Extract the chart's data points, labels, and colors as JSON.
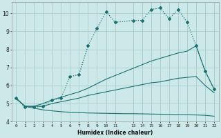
{
  "xlabel": "Humidex (Indice chaleur)",
  "bg_color": "#cce8e8",
  "grid_color": "#aacccc",
  "line_color": "#1a7070",
  "xlim": [
    -0.5,
    22.5
  ],
  "ylim": [
    4.0,
    10.6
  ],
  "yticks": [
    4,
    5,
    6,
    7,
    8,
    9,
    10
  ],
  "xticks": [
    0,
    1,
    2,
    3,
    4,
    5,
    6,
    7,
    8,
    9,
    10,
    11,
    13,
    14,
    15,
    16,
    17,
    18,
    19,
    20,
    21,
    22
  ],
  "s1_x": [
    0,
    1,
    2,
    3,
    4,
    5,
    6,
    7,
    8,
    9,
    10,
    11,
    13,
    14,
    15,
    16,
    17,
    18,
    19,
    20,
    21,
    22
  ],
  "s1_y": [
    5.3,
    4.8,
    4.8,
    4.85,
    5.2,
    5.3,
    6.5,
    6.6,
    8.2,
    9.15,
    10.1,
    9.5,
    9.6,
    9.6,
    10.2,
    10.3,
    9.7,
    10.2,
    9.5,
    8.2,
    6.8,
    5.8
  ],
  "s2_x": [
    0,
    1,
    2,
    3,
    4,
    5,
    6,
    7,
    8,
    9,
    10,
    11,
    13,
    14,
    15,
    16,
    17,
    18,
    19,
    20,
    21,
    22
  ],
  "s2_y": [
    5.3,
    4.85,
    4.85,
    5.0,
    5.2,
    5.35,
    5.5,
    5.65,
    5.85,
    6.1,
    6.35,
    6.55,
    6.95,
    7.15,
    7.35,
    7.5,
    7.65,
    7.8,
    7.9,
    8.2,
    6.8,
    5.8
  ],
  "s3_x": [
    0,
    1,
    2,
    3,
    4,
    5,
    6,
    7,
    8,
    9,
    10,
    11,
    13,
    14,
    15,
    16,
    17,
    18,
    19,
    20,
    21,
    22
  ],
  "s3_y": [
    5.3,
    4.85,
    4.85,
    4.85,
    5.0,
    5.1,
    5.2,
    5.3,
    5.45,
    5.55,
    5.65,
    5.75,
    5.95,
    6.05,
    6.15,
    6.2,
    6.3,
    6.4,
    6.45,
    6.5,
    6.0,
    5.6
  ],
  "s4_x": [
    0,
    1,
    2,
    3,
    4,
    5,
    6,
    7,
    8,
    9,
    10,
    11,
    12,
    13,
    14,
    15,
    16,
    17,
    18,
    19,
    20,
    21,
    22
  ],
  "s4_y": [
    5.3,
    4.85,
    4.75,
    4.65,
    4.6,
    4.55,
    4.52,
    4.5,
    4.48,
    4.47,
    4.46,
    4.45,
    4.44,
    4.44,
    4.43,
    4.42,
    4.41,
    4.4,
    4.39,
    4.38,
    4.37,
    4.35,
    4.3
  ]
}
